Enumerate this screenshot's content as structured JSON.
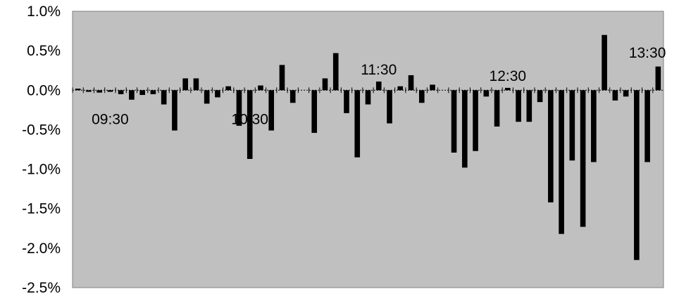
{
  "chart_data": {
    "type": "bar",
    "title": "",
    "xlabel": "",
    "ylabel": "",
    "ylim": [
      -2.5,
      1.0
    ],
    "y_unit": "%",
    "y_ticks": [
      "1.0%",
      "0.5%",
      "0.0%",
      "-0.5%",
      "-1.0%",
      "-1.5%",
      "-2.0%",
      "-2.5%"
    ],
    "y_tick_values": [
      1.0,
      0.5,
      0.0,
      -0.5,
      -1.0,
      -1.5,
      -2.0,
      -2.5
    ],
    "grid": false,
    "legend": "none",
    "bar_color": "#000000",
    "plot_background": "#c0c0c0",
    "time_labels": [
      {
        "text": "09:30",
        "index": 3
      },
      {
        "text": "10:30",
        "index": 16
      },
      {
        "text": "11:30",
        "index": 28
      },
      {
        "text": "12:30",
        "index": 40
      },
      {
        "text": "13:30",
        "index": 53
      }
    ],
    "values": [
      0.02,
      -0.02,
      -0.03,
      -0.02,
      -0.05,
      -0.12,
      -0.06,
      -0.05,
      -0.18,
      -0.51,
      0.15,
      0.15,
      -0.17,
      -0.09,
      0.05,
      -0.45,
      -0.87,
      0.06,
      -0.51,
      0.32,
      -0.16,
      0.0,
      -0.54,
      0.15,
      0.47,
      -0.29,
      -0.85,
      -0.18,
      0.11,
      -0.42,
      0.05,
      0.19,
      -0.16,
      0.07,
      0.0,
      -0.79,
      -0.98,
      -0.77,
      -0.08,
      -0.46,
      0.03,
      -0.4,
      -0.4,
      -0.15,
      -1.42,
      -1.82,
      -0.89,
      -1.73,
      -0.91,
      0.7,
      -0.13,
      -0.08,
      -2.15,
      -0.91,
      0.3
    ]
  }
}
